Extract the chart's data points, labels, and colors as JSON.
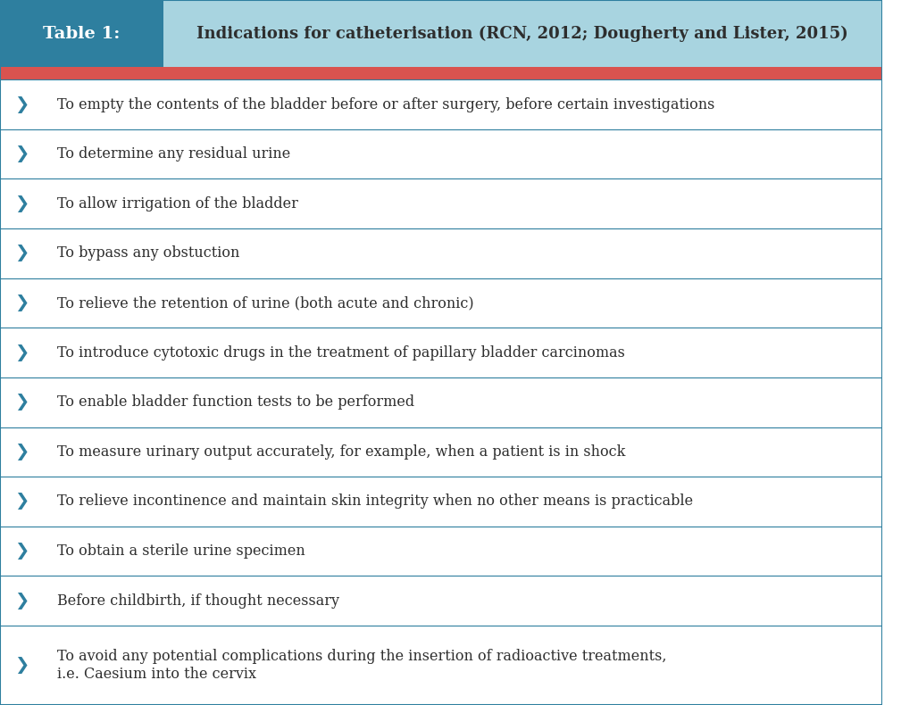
{
  "table_label": "Table 1:",
  "table_title": "Indications for catheterisation (RCN, 2012; Dougherty and Lister, 2015)",
  "header_left_bg": "#2E7F9F",
  "header_right_bg": "#A8D4E0",
  "accent_bar_color": "#D9534F",
  "bullet_color": "#2E7F9F",
  "text_color": "#2E2E2E",
  "line_color": "#2E7F9F",
  "bg_color": "#FFFFFF",
  "rows": [
    "To empty the contents of the bladder before or after surgery, before certain investigations",
    "To determine any residual urine",
    "To allow irrigation of the bladder",
    "To bypass any obstuction",
    "To relieve the retention of urine (both acute and chronic)",
    "To introduce cytotoxic drugs in the treatment of papillary bladder carcinomas",
    "To enable bladder function tests to be performed",
    "To measure urinary output accurately, for example, when a patient is in shock",
    "To relieve incontinence and maintain skin integrity when no other means is practicable",
    "To obtain a sterile urine specimen",
    "Before childbirth, if thought necessary",
    "To avoid any potential complications during the insertion of radioactive treatments,\ni.e. Caesium into the cervix"
  ],
  "title_fontsize": 13,
  "label_fontsize": 14,
  "row_fontsize": 11.5,
  "bullet_fontsize": 14
}
